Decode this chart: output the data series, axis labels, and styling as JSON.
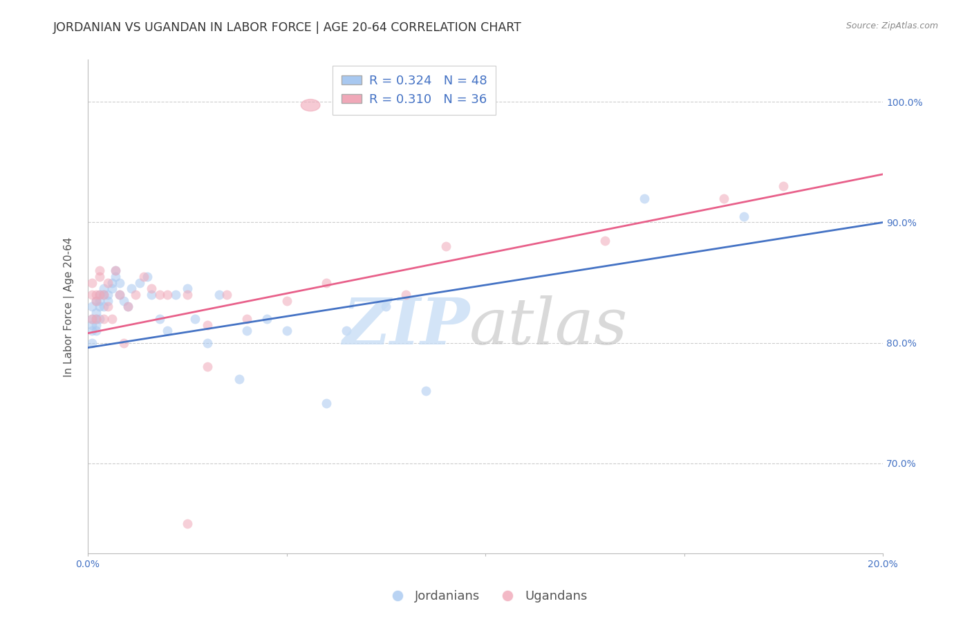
{
  "title": "JORDANIAN VS UGANDAN IN LABOR FORCE | AGE 20-64 CORRELATION CHART",
  "source_text": "Source: ZipAtlas.com",
  "ylabel": "In Labor Force | Age 20-64",
  "blue_color": "#a8c8f0",
  "pink_color": "#f0a8b8",
  "blue_line_color": "#4472c4",
  "pink_line_color": "#e8608a",
  "axis_color": "#4472c4",
  "title_color": "#333333",
  "grid_color": "#cccccc",
  "xlim": [
    0.0,
    0.2
  ],
  "ylim": [
    0.625,
    1.035
  ],
  "yticks": [
    0.7,
    0.8,
    0.9,
    1.0
  ],
  "ytick_labels": [
    "70.0%",
    "80.0%",
    "90.0%",
    "100.0%"
  ],
  "xticks": [
    0.0,
    0.05,
    0.1,
    0.15,
    0.2
  ],
  "xtick_labels": [
    "0.0%",
    "",
    "",
    "",
    "20.0%"
  ],
  "blue_x": [
    0.001,
    0.001,
    0.001,
    0.001,
    0.001,
    0.002,
    0.002,
    0.002,
    0.002,
    0.002,
    0.003,
    0.003,
    0.003,
    0.003,
    0.004,
    0.004,
    0.004,
    0.005,
    0.005,
    0.006,
    0.006,
    0.007,
    0.007,
    0.008,
    0.008,
    0.009,
    0.01,
    0.011,
    0.013,
    0.015,
    0.016,
    0.018,
    0.02,
    0.022,
    0.025,
    0.027,
    0.03,
    0.033,
    0.038,
    0.04,
    0.045,
    0.05,
    0.06,
    0.065,
    0.075,
    0.085,
    0.14,
    0.165
  ],
  "blue_y": [
    0.83,
    0.82,
    0.815,
    0.81,
    0.8,
    0.835,
    0.825,
    0.82,
    0.815,
    0.81,
    0.84,
    0.835,
    0.83,
    0.82,
    0.845,
    0.84,
    0.83,
    0.84,
    0.835,
    0.85,
    0.845,
    0.86,
    0.855,
    0.85,
    0.84,
    0.835,
    0.83,
    0.845,
    0.85,
    0.855,
    0.84,
    0.82,
    0.81,
    0.84,
    0.845,
    0.82,
    0.8,
    0.84,
    0.77,
    0.81,
    0.82,
    0.81,
    0.75,
    0.81,
    0.83,
    0.76,
    0.92,
    0.905
  ],
  "pink_x": [
    0.001,
    0.001,
    0.001,
    0.002,
    0.002,
    0.002,
    0.003,
    0.003,
    0.003,
    0.004,
    0.004,
    0.005,
    0.005,
    0.006,
    0.007,
    0.008,
    0.009,
    0.01,
    0.012,
    0.014,
    0.016,
    0.018,
    0.02,
    0.025,
    0.03,
    0.035,
    0.04,
    0.05,
    0.06,
    0.08,
    0.09,
    0.13,
    0.16,
    0.175,
    0.03,
    0.025
  ],
  "pink_y": [
    0.85,
    0.84,
    0.82,
    0.84,
    0.835,
    0.82,
    0.86,
    0.855,
    0.84,
    0.84,
    0.82,
    0.85,
    0.83,
    0.82,
    0.86,
    0.84,
    0.8,
    0.83,
    0.84,
    0.855,
    0.845,
    0.84,
    0.84,
    0.84,
    0.815,
    0.84,
    0.82,
    0.835,
    0.85,
    0.84,
    0.88,
    0.885,
    0.92,
    0.93,
    0.78,
    0.65
  ],
  "R_blue": 0.324,
  "N_blue": 48,
  "R_pink": 0.31,
  "N_pink": 36,
  "scatter_size": 100,
  "scatter_alpha": 0.55,
  "title_fontsize": 12.5,
  "source_fontsize": 9,
  "axis_label_fontsize": 11,
  "tick_fontsize": 10,
  "legend_fontsize": 13
}
